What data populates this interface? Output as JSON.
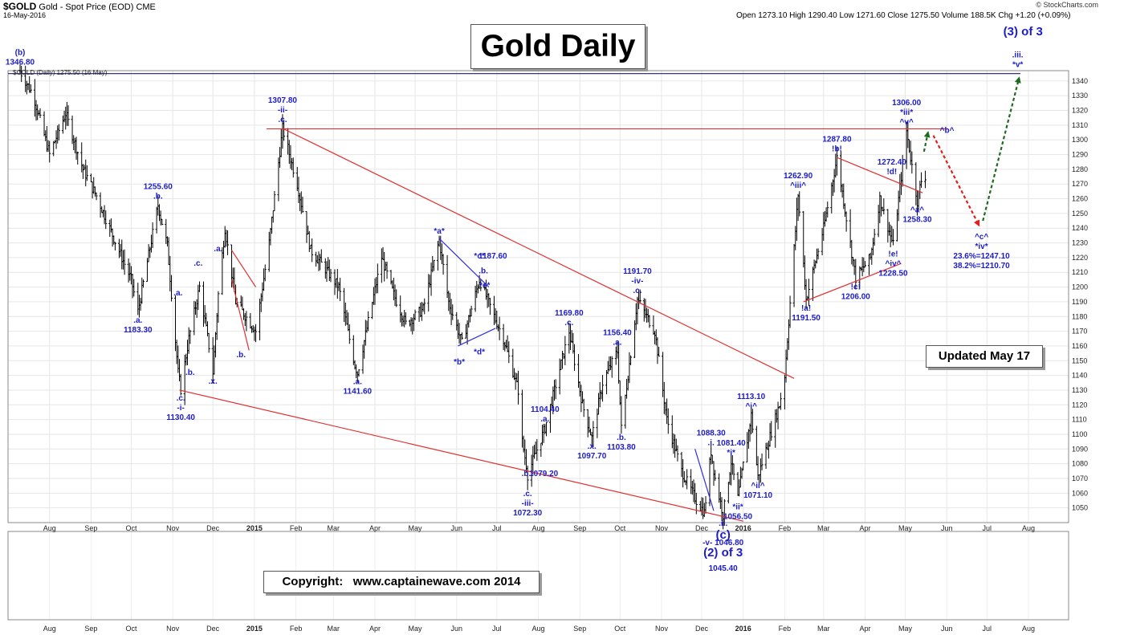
{
  "header": {
    "ticker": "$GOLD",
    "name": "Gold - Spot Price (EOD)",
    "exchange": "CME",
    "date": "16-May-2016",
    "source": "© StockCharts.com",
    "ohlc": "Open 1273.10  High 1290.40  Low 1271.60  Close 1275.50  Volume 188.5K  Chg +1.20 (+0.09%)"
  },
  "legend_label": "$GOLD (Daily) 1275.50 (16 May)",
  "title_box": "Gold Daily",
  "updated_box": "Updated May 17",
  "copyright_box": "Copyright:   www.captainewave.com 2014",
  "chart_data": {
    "type": "ohlc",
    "title": "Gold Daily",
    "y_axis": {
      "min": 1040,
      "max": 1347,
      "ticks": [
        1050,
        1060,
        1070,
        1080,
        1090,
        1100,
        1110,
        1120,
        1130,
        1140,
        1150,
        1160,
        1170,
        1180,
        1190,
        1200,
        1210,
        1220,
        1230,
        1240,
        1250,
        1260,
        1270,
        1280,
        1290,
        1300,
        1310,
        1320,
        1330,
        1340
      ],
      "side": "right"
    },
    "x_axis": {
      "range": [
        "2014-07-01",
        "2016-08-31"
      ],
      "tick_labels": [
        "Aug",
        "Sep",
        "Oct",
        "Nov",
        "Dec",
        "2015",
        "Feb",
        "Mar",
        "Apr",
        "May",
        "Jun",
        "Jul",
        "Aug",
        "Sep",
        "Oct",
        "Nov",
        "Dec",
        "2016",
        "Feb",
        "Mar",
        "Apr",
        "May",
        "Jun",
        "Jul",
        "Aug"
      ]
    },
    "grid": true,
    "swing_points": [
      [
        "2014-07-10",
        1346.8
      ],
      [
        "2014-07-20",
        1330
      ],
      [
        "2014-08-01",
        1290
      ],
      [
        "2014-08-13",
        1318
      ],
      [
        "2014-08-26",
        1280
      ],
      [
        "2014-09-05",
        1262
      ],
      [
        "2014-09-24",
        1220
      ],
      [
        "2014-10-01",
        1205
      ],
      [
        "2014-10-06",
        1183.3
      ],
      [
        "2014-10-21",
        1255.6
      ],
      [
        "2014-10-28",
        1228
      ],
      [
        "2014-11-05",
        1142
      ],
      [
        "2014-11-07",
        1130.4
      ],
      [
        "2014-11-13",
        1165
      ],
      [
        "2014-11-21",
        1200
      ],
      [
        "2014-11-28",
        1160
      ],
      [
        "2014-12-01",
        1142
      ],
      [
        "2014-12-05",
        1195
      ],
      [
        "2014-12-10",
        1240
      ],
      [
        "2014-12-18",
        1190
      ],
      [
        "2015-01-02",
        1170
      ],
      [
        "2015-01-12",
        1230
      ],
      [
        "2015-01-22",
        1307.8
      ],
      [
        "2015-02-02",
        1270
      ],
      [
        "2015-02-12",
        1225
      ],
      [
        "2015-02-25",
        1210
      ],
      [
        "2015-03-05",
        1200
      ],
      [
        "2015-03-17",
        1147
      ],
      [
        "2015-03-19",
        1141.6
      ],
      [
        "2015-04-06",
        1220
      ],
      [
        "2015-04-15",
        1195
      ],
      [
        "2015-04-24",
        1175
      ],
      [
        "2015-05-07",
        1185
      ],
      [
        "2015-05-19",
        1232
      ],
      [
        "2015-05-26",
        1190
      ],
      [
        "2015-06-05",
        1162
      ],
      [
        "2015-06-18",
        1205
      ],
      [
        "2015-06-30",
        1178
      ],
      [
        "2015-07-06",
        1165
      ],
      [
        "2015-07-17",
        1130
      ],
      [
        "2015-07-20",
        1095
      ],
      [
        "2015-07-23",
        1079.2
      ],
      [
        "2015-07-24",
        1072.3
      ],
      [
        "2015-08-06",
        1104.4
      ],
      [
        "2015-08-24",
        1169.8
      ],
      [
        "2015-09-03",
        1120
      ],
      [
        "2015-09-10",
        1097.7
      ],
      [
        "2015-09-18",
        1135
      ],
      [
        "2015-09-29",
        1156.4
      ],
      [
        "2015-10-02",
        1103.8
      ],
      [
        "2015-10-14",
        1191.7
      ],
      [
        "2015-10-27",
        1170
      ],
      [
        "2015-11-05",
        1110
      ],
      [
        "2015-11-16",
        1075
      ],
      [
        "2015-11-27",
        1055
      ],
      [
        "2015-12-03",
        1046.8
      ],
      [
        "2015-12-08",
        1088.3
      ],
      [
        "2015-12-11",
        1070
      ],
      [
        "2015-12-17",
        1045.4
      ],
      [
        "2015-12-23",
        1081.4
      ],
      [
        "2015-12-28",
        1056.5
      ],
      [
        "2016-01-07",
        1113.1
      ],
      [
        "2016-01-12",
        1071.1
      ],
      [
        "2016-01-28",
        1120
      ],
      [
        "2016-02-01",
        1140
      ],
      [
        "2016-02-11",
        1262.9
      ],
      [
        "2016-02-17",
        1191.5
      ],
      [
        "2016-03-01",
        1240
      ],
      [
        "2016-03-11",
        1287.8
      ],
      [
        "2016-03-25",
        1206
      ],
      [
        "2016-04-05",
        1220
      ],
      [
        "2016-04-12",
        1260
      ],
      [
        "2016-04-22",
        1228.5
      ],
      [
        "2016-05-02",
        1306
      ],
      [
        "2016-05-10",
        1258.3
      ],
      [
        "2016-05-13",
        1272.4
      ],
      [
        "2016-05-16",
        1275.5
      ]
    ],
    "wave_labels": [
      {
        "text": "1346.80",
        "date": "2014-07-10",
        "price": 1346.8,
        "pos": "above"
      },
      {
        "text": "(b)",
        "date": "2014-07-10",
        "price": 1346.8,
        "pos": "above2"
      },
      {
        "text": ".a.",
        "date": "2014-10-06",
        "price": 1183.3,
        "pos": "below"
      },
      {
        "text": "1183.30",
        "date": "2014-10-06",
        "price": 1183.3,
        "pos": "below2"
      },
      {
        "text": "1255.60",
        "date": "2014-10-21",
        "price": 1255.6,
        "pos": "above2"
      },
      {
        "text": ".b.",
        "date": "2014-10-21",
        "price": 1255.6,
        "pos": "above"
      },
      {
        "text": ".a.",
        "date": "2014-11-05",
        "price": 1190,
        "pos": "above"
      },
      {
        "text": ".b.",
        "date": "2014-11-14",
        "price": 1148,
        "pos": "below"
      },
      {
        "text": ".c.",
        "date": "2014-11-07",
        "price": 1130.4,
        "pos": "below"
      },
      {
        "text": "-i-",
        "date": "2014-11-07",
        "price": 1130.4,
        "pos": "below2"
      },
      {
        "text": "1130.40",
        "date": "2014-11-07",
        "price": 1130.4,
        "pos": "below3"
      },
      {
        "text": ".c.",
        "date": "2014-11-20",
        "price": 1210,
        "pos": "above"
      },
      {
        "text": ".a.",
        "date": "2014-12-05",
        "price": 1220,
        "pos": "above"
      },
      {
        "text": ".x.",
        "date": "2014-12-01",
        "price": 1142,
        "pos": "below"
      },
      {
        "text": ".b.",
        "date": "2014-12-22",
        "price": 1160,
        "pos": "below"
      },
      {
        "text": "1307.80",
        "date": "2015-01-22",
        "price": 1307.8,
        "pos": "above3"
      },
      {
        "text": "-ii-",
        "date": "2015-01-22",
        "price": 1307.8,
        "pos": "above2"
      },
      {
        "text": ".c.",
        "date": "2015-01-22",
        "price": 1307.8,
        "pos": "above"
      },
      {
        "text": ".a.",
        "date": "2015-03-19",
        "price": 1141.6,
        "pos": "below"
      },
      {
        "text": "1141.60",
        "date": "2015-03-19",
        "price": 1141.6,
        "pos": "below2"
      },
      {
        "text": "*a*",
        "date": "2015-05-19",
        "price": 1232,
        "pos": "above"
      },
      {
        "text": "*c*",
        "date": "2015-06-18",
        "price": 1215,
        "pos": "above"
      },
      {
        "text": "1187.60",
        "date": "2015-06-28",
        "price": 1215,
        "pos": "above"
      },
      {
        "text": ".b.",
        "date": "2015-06-21",
        "price": 1205,
        "pos": "above"
      },
      {
        "text": "*e*",
        "date": "2015-06-22",
        "price": 1195,
        "pos": "above"
      },
      {
        "text": "*d*",
        "date": "2015-06-18",
        "price": 1162,
        "pos": "below"
      },
      {
        "text": "*b*",
        "date": "2015-06-03",
        "price": 1155,
        "pos": "below"
      },
      {
        "text": "1104.40",
        "date": "2015-08-06",
        "price": 1104.4,
        "pos": "above2"
      },
      {
        "text": ".a.",
        "date": "2015-08-06",
        "price": 1104.4,
        "pos": "above"
      },
      {
        "text": ".b.",
        "date": "2015-07-23",
        "price": 1079.2,
        "pos": "below"
      },
      {
        "text": "1079.20",
        "date": "2015-08-05",
        "price": 1079.2,
        "pos": "below"
      },
      {
        "text": ".c.",
        "date": "2015-07-24",
        "price": 1072.3,
        "pos": "below2"
      },
      {
        "text": "-iii-",
        "date": "2015-07-24",
        "price": 1072.3,
        "pos": "below3"
      },
      {
        "text": "1072.30",
        "date": "2015-07-24",
        "price": 1072.3,
        "pos": "below4"
      },
      {
        "text": "1169.80",
        "date": "2015-08-24",
        "price": 1169.8,
        "pos": "above2"
      },
      {
        "text": ".c.",
        "date": "2015-08-24",
        "price": 1169.8,
        "pos": "above"
      },
      {
        "text": ".x.",
        "date": "2015-09-10",
        "price": 1097.7,
        "pos": "below"
      },
      {
        "text": "1097.70",
        "date": "2015-09-10",
        "price": 1097.7,
        "pos": "below2"
      },
      {
        "text": "1156.40",
        "date": "2015-09-29",
        "price": 1156.4,
        "pos": "above2"
      },
      {
        "text": ".a.",
        "date": "2015-09-29",
        "price": 1156.4,
        "pos": "above"
      },
      {
        "text": ".b.",
        "date": "2015-10-02",
        "price": 1103.8,
        "pos": "below"
      },
      {
        "text": "1103.80",
        "date": "2015-10-02",
        "price": 1103.8,
        "pos": "below2"
      },
      {
        "text": "1191.70",
        "date": "2015-10-14",
        "price": 1191.7,
        "pos": "above3"
      },
      {
        "text": "-iv-",
        "date": "2015-10-14",
        "price": 1191.7,
        "pos": "above2"
      },
      {
        "text": ".c.",
        "date": "2015-10-14",
        "price": 1191.7,
        "pos": "above"
      },
      {
        "text": "1088.30",
        "date": "2015-12-08",
        "price": 1088.3,
        "pos": "above2"
      },
      {
        "text": ".i.",
        "date": "2015-12-08",
        "price": 1088.3,
        "pos": "above"
      },
      {
        "text": "1081.40",
        "date": "2015-12-23",
        "price": 1081.4,
        "pos": "above2"
      },
      {
        "text": "*i*",
        "date": "2015-12-23",
        "price": 1081.4,
        "pos": "above"
      },
      {
        "text": "*ii*",
        "date": "2015-12-28",
        "price": 1056.5,
        "pos": "below"
      },
      {
        "text": ".ii.",
        "date": "2015-12-17",
        "price": 1045.4,
        "pos": "below"
      },
      {
        "text": "1056.50",
        "date": "2015-12-28",
        "price": 1056.5,
        "pos": "below2"
      },
      {
        "text": "-v-  1046.80",
        "date": "2015-12-17",
        "price": 1045.4,
        "pos": "below3"
      },
      {
        "text": "1113.10",
        "date": "2016-01-07",
        "price": 1113.1,
        "pos": "above2"
      },
      {
        "text": "^i^",
        "date": "2016-01-07",
        "price": 1113.1,
        "pos": "above"
      },
      {
        "text": "^ii^",
        "date": "2016-01-12",
        "price": 1071.1,
        "pos": "below"
      },
      {
        "text": "1071.10",
        "date": "2016-01-12",
        "price": 1071.1,
        "pos": "below2"
      },
      {
        "text": "1262.90",
        "date": "2016-02-11",
        "price": 1262.9,
        "pos": "above2"
      },
      {
        "text": "^iii^",
        "date": "2016-02-11",
        "price": 1262.9,
        "pos": "above"
      },
      {
        "text": "!a!",
        "date": "2016-02-17",
        "price": 1191.5,
        "pos": "below"
      },
      {
        "text": "1191.50",
        "date": "2016-02-17",
        "price": 1191.5,
        "pos": "below2"
      },
      {
        "text": "1287.80",
        "date": "2016-03-11",
        "price": 1287.8,
        "pos": "above2"
      },
      {
        "text": "!b!",
        "date": "2016-03-11",
        "price": 1287.8,
        "pos": "above"
      },
      {
        "text": "!c!",
        "date": "2016-03-25",
        "price": 1206.0,
        "pos": "below"
      },
      {
        "text": "1206.00",
        "date": "2016-03-25",
        "price": 1206.0,
        "pos": "below2"
      },
      {
        "text": "1272.40",
        "date": "2016-04-21",
        "price": 1272.4,
        "pos": "above2"
      },
      {
        "text": "!d!",
        "date": "2016-04-21",
        "price": 1272.4,
        "pos": "above"
      },
      {
        "text": "!e!",
        "date": "2016-04-22",
        "price": 1228.5,
        "pos": "below"
      },
      {
        "text": "^iv^",
        "date": "2016-04-22",
        "price": 1228.5,
        "pos": "below2"
      },
      {
        "text": "1228.50",
        "date": "2016-04-22",
        "price": 1228.5,
        "pos": "below3"
      },
      {
        "text": "1306.00",
        "date": "2016-05-02",
        "price": 1306.0,
        "pos": "above3"
      },
      {
        "text": "*iii*",
        "date": "2016-05-02",
        "price": 1306.0,
        "pos": "above2"
      },
      {
        "text": "^v^",
        "date": "2016-05-02",
        "price": 1306.0,
        "pos": "above"
      },
      {
        "text": "^a^",
        "date": "2016-05-10",
        "price": 1258.3,
        "pos": "below"
      },
      {
        "text": "1258.30",
        "date": "2016-05-10",
        "price": 1258.3,
        "pos": "below2"
      },
      {
        "text": "^b^",
        "date": "2016-05-25",
        "price": 1307,
        "pos": "right"
      },
      {
        "text": "^c^",
        "date": "2016-06-27",
        "price": 1240,
        "pos": "below"
      },
      {
        "text": "*iv*",
        "date": "2016-06-27",
        "price": 1240,
        "pos": "below2"
      },
      {
        "text": "23.6%=1247.10",
        "date": "2016-06-27",
        "price": 1240,
        "pos": "below3"
      },
      {
        "text": "38.2%=1210.70",
        "date": "2016-06-27",
        "price": 1240,
        "pos": "below4"
      },
      {
        "text": ".iii.",
        "date": "2016-07-24",
        "price": 1345,
        "pos": "above2"
      },
      {
        "text": "*v*",
        "date": "2016-07-24",
        "price": 1345,
        "pos": "above"
      }
    ],
    "degree_labels": [
      {
        "text": "(3) of 3",
        "date": "2016-07-10",
        "price": 1347,
        "place": "top"
      },
      {
        "text": "(c)",
        "date": "2015-12-17",
        "price": 1045.4,
        "place": "below1"
      },
      {
        "text": "(2) of 3",
        "date": "2015-12-17",
        "price": 1045.4,
        "place": "below2"
      },
      {
        "text": "1045.40",
        "date": "2015-12-17",
        "price": 1045.4,
        "place": "below3"
      }
    ],
    "trendlines": [
      {
        "color": "#e03030",
        "from": [
          "2015-01-10",
          1307.5
        ],
        "to": [
          "2016-06-02",
          1307.5
        ]
      },
      {
        "color": "#e03030",
        "from": [
          "2015-01-22",
          1307.8
        ],
        "to": [
          "2016-02-08",
          1138
        ]
      },
      {
        "color": "#e03030",
        "from": [
          "2014-11-06",
          1130
        ],
        "to": [
          "2016-01-01",
          1041
        ]
      },
      {
        "color": "#1a1a80",
        "from": [
          "2014-07-01",
          1345
        ],
        "to": [
          "2016-07-26",
          1345
        ]
      },
      {
        "color": "#e03030",
        "from": [
          "2016-02-15",
          1190
        ],
        "to": [
          "2016-04-28",
          1216
        ]
      },
      {
        "color": "#e03030",
        "from": [
          "2016-03-11",
          1288
        ],
        "to": [
          "2016-05-14",
          1264
        ]
      },
      {
        "color": "#e03030",
        "from": [
          "2014-12-15",
          1225
        ],
        "to": [
          "2015-01-02",
          1200
        ]
      },
      {
        "color": "#e03030",
        "from": [
          "2014-12-15",
          1205
        ],
        "to": [
          "2014-12-28",
          1157
        ]
      },
      {
        "color": "#3030dd",
        "from": [
          "2015-05-19",
          1233
        ],
        "to": [
          "2015-06-25",
          1200
        ]
      },
      {
        "color": "#3030dd",
        "from": [
          "2015-06-02",
          1160
        ],
        "to": [
          "2015-06-30",
          1172
        ]
      },
      {
        "color": "#3030dd",
        "from": [
          "2015-11-26",
          1090
        ],
        "to": [
          "2015-12-10",
          1048
        ]
      }
    ],
    "projections": [
      {
        "color": "#e02020",
        "from": [
          "2016-05-22",
          1303
        ],
        "to": [
          "2016-06-25",
          1242
        ]
      },
      {
        "color": "#1e6a1e",
        "from": [
          "2016-06-28",
          1245
        ],
        "to": [
          "2016-07-25",
          1342
        ]
      },
      {
        "color": "#1e6a1e",
        "from": [
          "2016-05-15",
          1292
        ],
        "to": [
          "2016-05-18",
          1305
        ]
      }
    ]
  }
}
